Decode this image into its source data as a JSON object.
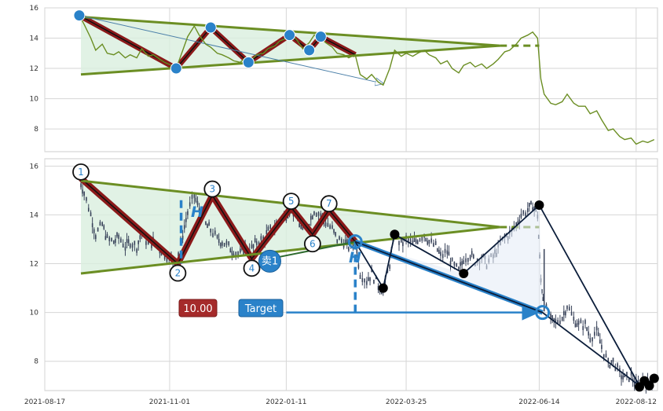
{
  "chart_data": [
    {
      "type": "line",
      "panel": "top",
      "ylim": [
        6.5,
        16
      ],
      "yticks": [
        "16",
        "14",
        "12",
        "10",
        "8"
      ],
      "line_color": "#6b8e23",
      "series": [
        {
          "values": [
            [
              "2021-09-07",
              15.5
            ],
            [
              "2021-09-10",
              14.9
            ],
            [
              "2021-09-14",
              14.0
            ],
            [
              "2021-09-17",
              13.2
            ],
            [
              "2021-09-21",
              13.6
            ],
            [
              "2021-09-24",
              13.0
            ],
            [
              "2021-09-28",
              12.9
            ],
            [
              "2021-10-01",
              13.1
            ],
            [
              "2021-10-05",
              12.7
            ],
            [
              "2021-10-08",
              12.9
            ],
            [
              "2021-10-12",
              12.7
            ],
            [
              "2021-10-15",
              13.3
            ],
            [
              "2021-10-19",
              12.8
            ],
            [
              "2021-10-22",
              12.9
            ],
            [
              "2021-10-26",
              12.6
            ],
            [
              "2021-10-29",
              12.4
            ],
            [
              "2021-11-02",
              12.2
            ],
            [
              "2021-11-05",
              12.0
            ],
            [
              "2021-11-09",
              13.2
            ],
            [
              "2021-11-12",
              14.1
            ],
            [
              "2021-11-16",
              14.8
            ],
            [
              "2021-11-19",
              14.2
            ],
            [
              "2021-11-23",
              13.6
            ],
            [
              "2021-11-26",
              13.4
            ],
            [
              "2021-11-30",
              13.0
            ],
            [
              "2021-12-03",
              12.9
            ],
            [
              "2021-12-07",
              12.7
            ],
            [
              "2021-12-10",
              12.5
            ],
            [
              "2021-12-14",
              12.4
            ],
            [
              "2021-12-17",
              12.7
            ],
            [
              "2021-12-21",
              12.6
            ],
            [
              "2021-12-24",
              12.9
            ],
            [
              "2021-12-28",
              13.0
            ],
            [
              "2021-12-31",
              13.3
            ],
            [
              "2022-01-04",
              13.5
            ],
            [
              "2022-01-07",
              13.8
            ],
            [
              "2022-01-11",
              14.0
            ],
            [
              "2022-01-14",
              14.3
            ],
            [
              "2022-01-18",
              13.8
            ],
            [
              "2022-01-21",
              13.3
            ],
            [
              "2022-01-25",
              13.7
            ],
            [
              "2022-01-28",
              14.2
            ],
            [
              "2022-02-01",
              14.0
            ],
            [
              "2022-02-04",
              13.7
            ],
            [
              "2022-02-08",
              13.4
            ],
            [
              "2022-02-11",
              13.0
            ],
            [
              "2022-02-15",
              12.9
            ],
            [
              "2022-02-18",
              12.7
            ],
            [
              "2022-02-22",
              12.9
            ],
            [
              "2022-02-25",
              11.6
            ],
            [
              "2022-03-01",
              11.3
            ],
            [
              "2022-03-04",
              11.6
            ],
            [
              "2022-03-08",
              11.1
            ],
            [
              "2022-03-11",
              10.9
            ],
            [
              "2022-03-15",
              12.0
            ],
            [
              "2022-03-18",
              13.2
            ],
            [
              "2022-03-22",
              12.8
            ],
            [
              "2022-03-25",
              13.0
            ],
            [
              "2022-03-29",
              12.8
            ],
            [
              "2022-04-01",
              13.0
            ],
            [
              "2022-04-05",
              13.2
            ],
            [
              "2022-04-08",
              12.9
            ],
            [
              "2022-04-12",
              12.7
            ],
            [
              "2022-04-15",
              12.3
            ],
            [
              "2022-04-19",
              12.5
            ],
            [
              "2022-04-22",
              12.0
            ],
            [
              "2022-04-26",
              11.7
            ],
            [
              "2022-04-29",
              12.2
            ],
            [
              "2022-05-03",
              12.4
            ],
            [
              "2022-05-06",
              12.1
            ],
            [
              "2022-05-10",
              12.3
            ],
            [
              "2022-05-13",
              12.0
            ],
            [
              "2022-05-17",
              12.3
            ],
            [
              "2022-05-20",
              12.6
            ],
            [
              "2022-05-24",
              13.1
            ],
            [
              "2022-05-27",
              13.2
            ],
            [
              "2022-05-31",
              13.6
            ],
            [
              "2022-06-03",
              14.0
            ],
            [
              "2022-06-07",
              14.2
            ],
            [
              "2022-06-10",
              14.4
            ],
            [
              "2022-06-13",
              14.0
            ],
            [
              "2022-06-15",
              11.3
            ],
            [
              "2022-06-17",
              10.3
            ],
            [
              "2022-06-21",
              9.7
            ],
            [
              "2022-06-24",
              9.6
            ],
            [
              "2022-06-28",
              9.8
            ],
            [
              "2022-07-01",
              10.3
            ],
            [
              "2022-07-05",
              9.7
            ],
            [
              "2022-07-08",
              9.5
            ],
            [
              "2022-07-12",
              9.5
            ],
            [
              "2022-07-15",
              9.0
            ],
            [
              "2022-07-19",
              9.2
            ],
            [
              "2022-07-22",
              8.6
            ],
            [
              "2022-07-26",
              7.9
            ],
            [
              "2022-07-29",
              8.0
            ],
            [
              "2022-08-02",
              7.5
            ],
            [
              "2022-08-05",
              7.3
            ],
            [
              "2022-08-09",
              7.4
            ],
            [
              "2022-08-12",
              7.0
            ],
            [
              "2022-08-16",
              7.2
            ],
            [
              "2022-08-19",
              7.1
            ],
            [
              "2022-08-23",
              7.3
            ]
          ]
        }
      ]
    },
    {
      "type": "candlestick",
      "panel": "bottom",
      "ylim": [
        6.8,
        16.3
      ],
      "xlim": [
        "2021-08-17",
        "2022-08-25"
      ],
      "yticks": [
        "16",
        "14",
        "12",
        "10",
        "8"
      ],
      "xticks": [
        "2021-08-17",
        "2021-11-01",
        "2022-01-11",
        "2022-03-25",
        "2022-06-14",
        "2022-08-12"
      ],
      "pattern_points": [
        {
          "label": "1",
          "date": "2021-09-08",
          "value": 15.5
        },
        {
          "label": "2",
          "date": "2021-11-06",
          "value": 12.0
        },
        {
          "label": "3",
          "date": "2021-11-27",
          "value": 14.8
        },
        {
          "label": "4",
          "date": "2021-12-21",
          "value": 12.2
        },
        {
          "label": "5",
          "date": "2022-01-14",
          "value": 14.3
        },
        {
          "label": "6",
          "date": "2022-01-27",
          "value": 13.2
        },
        {
          "label": "7",
          "date": "2022-02-06",
          "value": 14.2
        }
      ],
      "sell_marker": {
        "label": "卖1",
        "date": "2022-01-01",
        "value": 12.1
      },
      "price_tag": "10.00",
      "target_tag": "Target",
      "height_label": "H",
      "colors": {
        "pattern": "#8b1a1a",
        "trend": "#6b8e23",
        "accent": "#2a82c9",
        "fill": "#d9efdf",
        "tag_red": "#a52a2a",
        "candle": "#39435a"
      }
    }
  ]
}
